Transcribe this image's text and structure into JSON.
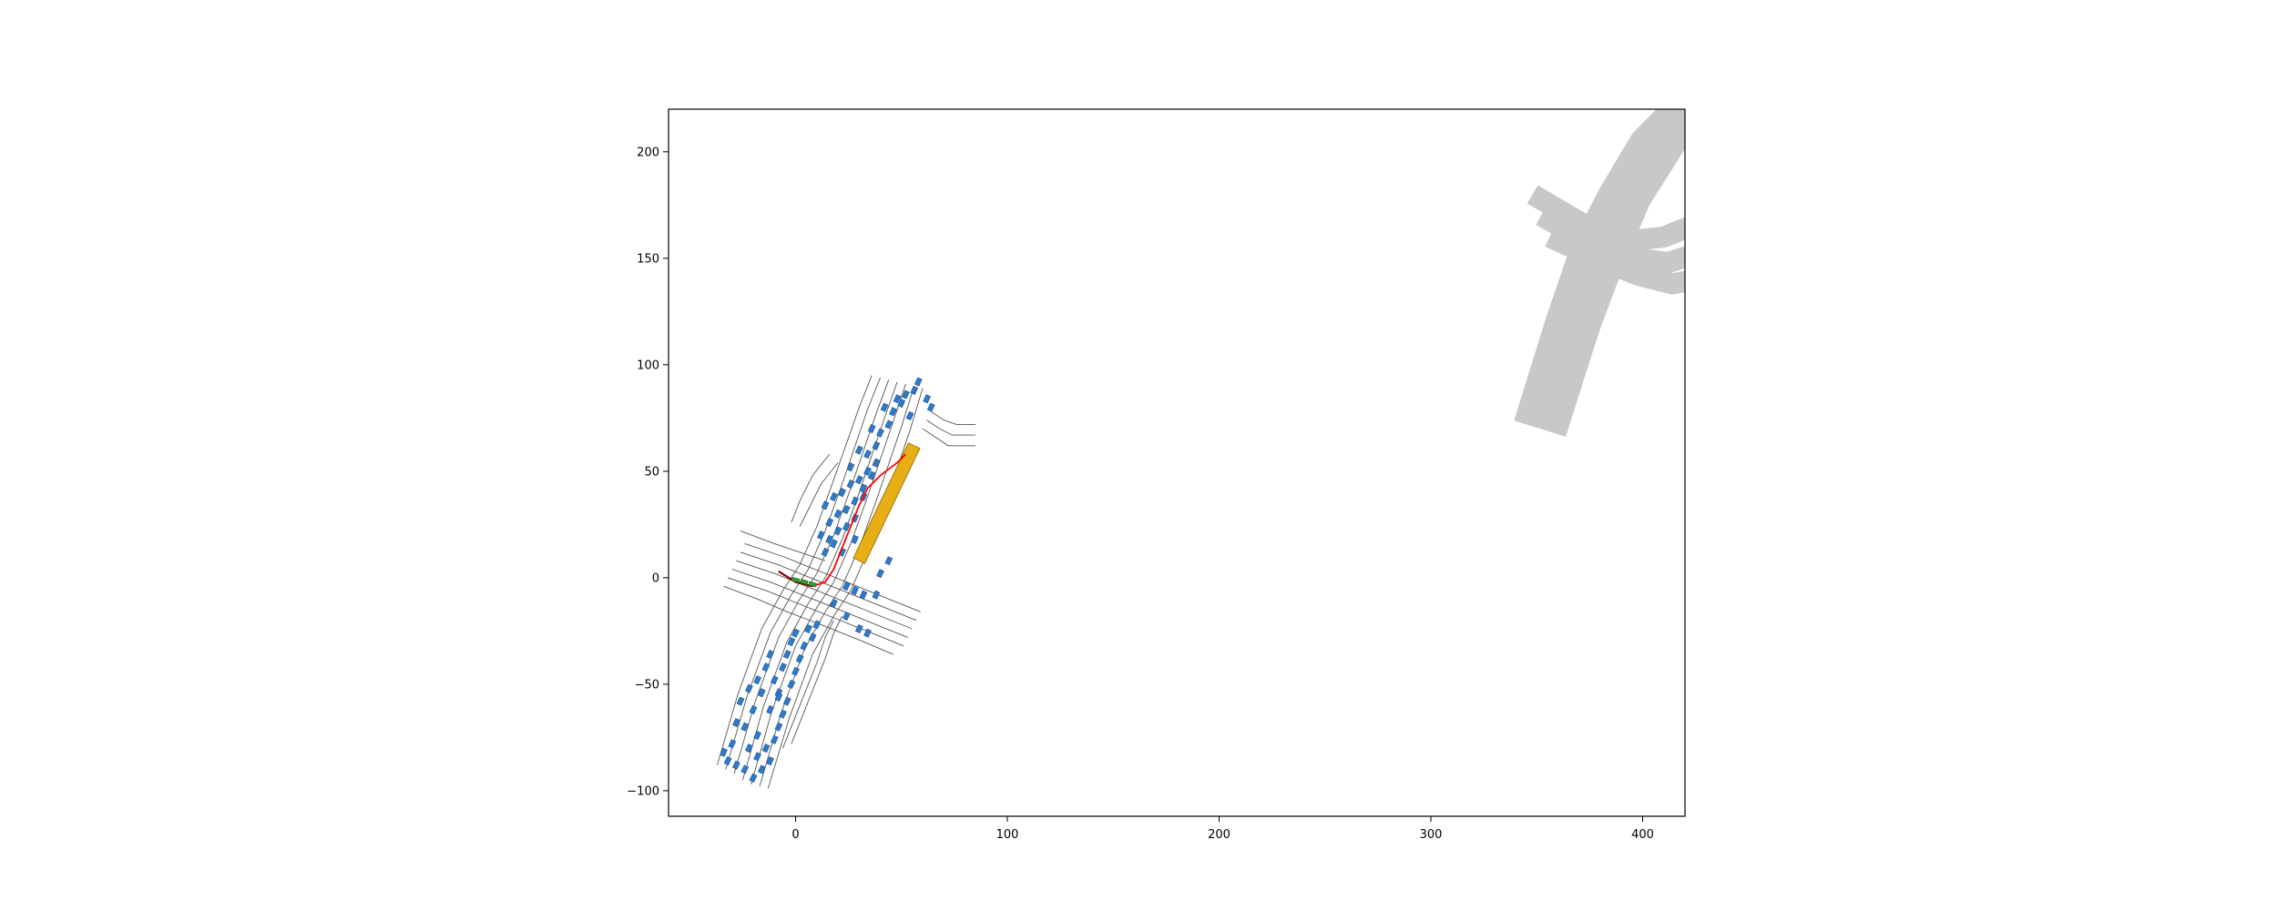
{
  "chart_data": {
    "type": "scatter",
    "title": "",
    "xlabel": "",
    "ylabel": "",
    "xlim": [
      -60,
      420
    ],
    "ylim": [
      -112,
      220
    ],
    "x_ticks": [
      0,
      100,
      200,
      300,
      400
    ],
    "y_ticks": [
      -100,
      -50,
      0,
      50,
      100,
      150,
      200
    ],
    "x_tick_labels": [
      "0",
      "100",
      "200",
      "300",
      "400"
    ],
    "y_tick_labels": [
      "−100",
      "−50",
      "0",
      "50",
      "100",
      "150",
      "200"
    ],
    "grid": false,
    "legend": "none",
    "colors": {
      "lane_line": "#555555",
      "vehicle": "#2f79c6",
      "vehicle_edge": "#1a4f8a",
      "ego_track": "#ff0000",
      "agent": "#2ca02c",
      "goal_box": "#e8ae16",
      "goal_edge": "#8a6a00",
      "far_roads": "#c8c8c8"
    },
    "lane_lines": [
      [
        [
          -25,
          -95
        ],
        [
          -15,
          -60
        ],
        [
          -4,
          -30
        ],
        [
          6,
          -12
        ],
        [
          14,
          0
        ],
        [
          22,
          18
        ],
        [
          30,
          40
        ],
        [
          42,
          75
        ],
        [
          48,
          92
        ]
      ],
      [
        [
          -29,
          -92
        ],
        [
          -19,
          -58
        ],
        [
          -8,
          -28
        ],
        [
          2,
          -10
        ],
        [
          10,
          2
        ],
        [
          18,
          20
        ],
        [
          26,
          42
        ],
        [
          38,
          77
        ],
        [
          44,
          93
        ]
      ],
      [
        [
          -33,
          -90
        ],
        [
          -23,
          -56
        ],
        [
          -12,
          -26
        ],
        [
          -2,
          -8
        ],
        [
          6,
          4
        ],
        [
          14,
          22
        ],
        [
          22,
          44
        ],
        [
          34,
          79
        ],
        [
          40,
          94
        ]
      ],
      [
        [
          -37,
          -88
        ],
        [
          -27,
          -54
        ],
        [
          -16,
          -24
        ],
        [
          -6,
          -6
        ],
        [
          2,
          6
        ],
        [
          10,
          24
        ],
        [
          18,
          46
        ],
        [
          30,
          80
        ],
        [
          36,
          95
        ]
      ],
      [
        [
          -21,
          -97
        ],
        [
          -11,
          -62
        ],
        [
          0,
          -32
        ],
        [
          10,
          -14
        ],
        [
          18,
          -2
        ],
        [
          26,
          16
        ],
        [
          34,
          38
        ],
        [
          46,
          73
        ],
        [
          52,
          91
        ]
      ],
      [
        [
          -17,
          -98
        ],
        [
          -7,
          -64
        ],
        [
          4,
          -34
        ],
        [
          14,
          -16
        ],
        [
          22,
          -4
        ],
        [
          30,
          14
        ],
        [
          38,
          36
        ],
        [
          50,
          71
        ],
        [
          56,
          90
        ]
      ],
      [
        [
          -13,
          -99
        ],
        [
          -3,
          -66
        ],
        [
          8,
          -36
        ],
        [
          18,
          -18
        ],
        [
          26,
          -6
        ],
        [
          34,
          12
        ],
        [
          42,
          34
        ],
        [
          54,
          69
        ],
        [
          60,
          89
        ]
      ],
      [
        [
          -28,
          8
        ],
        [
          -10,
          2
        ],
        [
          5,
          -4
        ],
        [
          20,
          -10
        ],
        [
          40,
          -18
        ],
        [
          55,
          -24
        ]
      ],
      [
        [
          -26,
          12
        ],
        [
          -8,
          6
        ],
        [
          7,
          0
        ],
        [
          22,
          -6
        ],
        [
          42,
          -14
        ],
        [
          57,
          -20
        ]
      ],
      [
        [
          -24,
          16
        ],
        [
          -6,
          10
        ],
        [
          9,
          4
        ],
        [
          24,
          -2
        ],
        [
          44,
          -10
        ],
        [
          59,
          -16
        ]
      ],
      [
        [
          -30,
          4
        ],
        [
          -12,
          -2
        ],
        [
          3,
          -8
        ],
        [
          18,
          -14
        ],
        [
          38,
          -22
        ],
        [
          53,
          -28
        ]
      ],
      [
        [
          -32,
          0
        ],
        [
          -14,
          -6
        ],
        [
          1,
          -12
        ],
        [
          16,
          -18
        ],
        [
          36,
          -26
        ],
        [
          51,
          -32
        ]
      ],
      [
        [
          -26,
          22
        ],
        [
          -10,
          16
        ],
        [
          2,
          12
        ],
        [
          14,
          8
        ]
      ],
      [
        [
          -34,
          -4
        ],
        [
          -18,
          -10
        ],
        [
          -4,
          -16
        ],
        [
          12,
          -22
        ],
        [
          32,
          -30
        ],
        [
          46,
          -36
        ]
      ],
      [
        [
          60,
          70
        ],
        [
          66,
          66
        ],
        [
          72,
          62
        ],
        [
          85,
          62
        ]
      ],
      [
        [
          62,
          74
        ],
        [
          68,
          70
        ],
        [
          74,
          67
        ],
        [
          85,
          67
        ]
      ],
      [
        [
          64,
          78
        ],
        [
          70,
          74
        ],
        [
          76,
          72
        ],
        [
          85,
          72
        ]
      ],
      [
        [
          18,
          -20
        ],
        [
          14,
          -28
        ],
        [
          10,
          -40
        ],
        [
          2,
          -60
        ],
        [
          -6,
          -80
        ]
      ],
      [
        [
          22,
          -18
        ],
        [
          18,
          -26
        ],
        [
          14,
          -38
        ],
        [
          6,
          -58
        ],
        [
          -2,
          -78
        ]
      ],
      [
        [
          2,
          24
        ],
        [
          6,
          32
        ],
        [
          12,
          44
        ],
        [
          20,
          54
        ]
      ],
      [
        [
          -2,
          26
        ],
        [
          2,
          36
        ],
        [
          8,
          48
        ],
        [
          16,
          58
        ]
      ]
    ],
    "vehicles": [
      [
        -20,
        -94
      ],
      [
        -24,
        -90
      ],
      [
        -28,
        -88
      ],
      [
        -32,
        -86
      ],
      [
        -16,
        -90
      ],
      [
        -12,
        -86
      ],
      [
        -18,
        -84
      ],
      [
        -22,
        -80
      ],
      [
        -30,
        -78
      ],
      [
        -34,
        -82
      ],
      [
        -14,
        -80
      ],
      [
        -10,
        -76
      ],
      [
        -18,
        -74
      ],
      [
        -8,
        -70
      ],
      [
        -24,
        -70
      ],
      [
        -28,
        -68
      ],
      [
        -6,
        -64
      ],
      [
        -12,
        -62
      ],
      [
        -20,
        -62
      ],
      [
        -26,
        -58
      ],
      [
        -4,
        -58
      ],
      [
        -8,
        -54
      ],
      [
        -16,
        -54
      ],
      [
        -22,
        -52
      ],
      [
        -2,
        -50
      ],
      [
        -10,
        -48
      ],
      [
        -18,
        -48
      ],
      [
        0,
        -44
      ],
      [
        -6,
        -42
      ],
      [
        -14,
        -42
      ],
      [
        2,
        -38
      ],
      [
        -4,
        -36
      ],
      [
        -12,
        -36
      ],
      [
        4,
        -32
      ],
      [
        -2,
        -30
      ],
      [
        8,
        -28
      ],
      [
        0,
        -26
      ],
      [
        6,
        -24
      ],
      [
        10,
        -22
      ],
      [
        -8,
        -56
      ],
      [
        14,
        34
      ],
      [
        18,
        38
      ],
      [
        22,
        40
      ],
      [
        26,
        44
      ],
      [
        16,
        26
      ],
      [
        20,
        30
      ],
      [
        24,
        32
      ],
      [
        28,
        36
      ],
      [
        32,
        38
      ],
      [
        12,
        20
      ],
      [
        16,
        18
      ],
      [
        20,
        22
      ],
      [
        24,
        24
      ],
      [
        14,
        12
      ],
      [
        18,
        16
      ],
      [
        22,
        12
      ],
      [
        28,
        28
      ],
      [
        30,
        46
      ],
      [
        34,
        50
      ],
      [
        26,
        52
      ],
      [
        34,
        58
      ],
      [
        38,
        62
      ],
      [
        30,
        60
      ],
      [
        40,
        68
      ],
      [
        44,
        72
      ],
      [
        36,
        70
      ],
      [
        46,
        78
      ],
      [
        50,
        82
      ],
      [
        42,
        80
      ],
      [
        52,
        86
      ],
      [
        56,
        88
      ],
      [
        48,
        84
      ],
      [
        62,
        84
      ],
      [
        58,
        92
      ],
      [
        54,
        76
      ],
      [
        64,
        80
      ],
      [
        38,
        54
      ],
      [
        32,
        42
      ],
      [
        36,
        48
      ],
      [
        28,
        18
      ],
      [
        24,
        -4
      ],
      [
        28,
        -6
      ],
      [
        32,
        -8
      ],
      [
        38,
        -8
      ],
      [
        24,
        -18
      ],
      [
        30,
        -24
      ],
      [
        34,
        -26
      ],
      [
        18,
        -12
      ],
      [
        40,
        2
      ],
      [
        44,
        8
      ]
    ],
    "ego_track": [
      [
        -8,
        3
      ],
      [
        0,
        -2
      ],
      [
        8,
        -4
      ],
      [
        14,
        -2
      ],
      [
        18,
        4
      ],
      [
        22,
        14
      ],
      [
        26,
        24
      ],
      [
        30,
        34
      ],
      [
        34,
        42
      ],
      [
        40,
        48
      ],
      [
        48,
        54
      ],
      [
        52,
        58
      ]
    ],
    "ego_track_dark": [
      [
        -8,
        3
      ],
      [
        0,
        -2
      ],
      [
        8,
        -4
      ]
    ],
    "agents": [
      [
        0,
        -1
      ],
      [
        4,
        -2
      ],
      [
        8,
        -3
      ]
    ],
    "goal_box": {
      "x1": 30,
      "y1": 8,
      "x2": 56,
      "y2": 62,
      "width": 3
    },
    "far_roads": [
      [
        [
          345,
          72
        ],
        [
          360,
          120
        ],
        [
          372,
          155
        ],
        [
          385,
          180
        ],
        [
          400,
          205
        ],
        [
          420,
          225
        ]
      ],
      [
        [
          352,
          70
        ],
        [
          368,
          120
        ],
        [
          378,
          150
        ],
        [
          392,
          180
        ],
        [
          408,
          205
        ],
        [
          425,
          225
        ]
      ],
      [
        [
          358,
          68
        ],
        [
          374,
          118
        ],
        [
          386,
          150
        ],
        [
          398,
          178
        ],
        [
          414,
          203
        ],
        [
          430,
          225
        ]
      ],
      [
        [
          348,
          180
        ],
        [
          372,
          166
        ],
        [
          392,
          158
        ],
        [
          410,
          160
        ],
        [
          425,
          166
        ]
      ],
      [
        [
          352,
          170
        ],
        [
          374,
          158
        ],
        [
          396,
          150
        ],
        [
          412,
          148
        ],
        [
          425,
          152
        ]
      ],
      [
        [
          356,
          160
        ],
        [
          378,
          150
        ],
        [
          398,
          142
        ],
        [
          414,
          138
        ],
        [
          425,
          140
        ]
      ]
    ],
    "far_roads_width": [
      12,
      12,
      12,
      10,
      10,
      10
    ]
  }
}
